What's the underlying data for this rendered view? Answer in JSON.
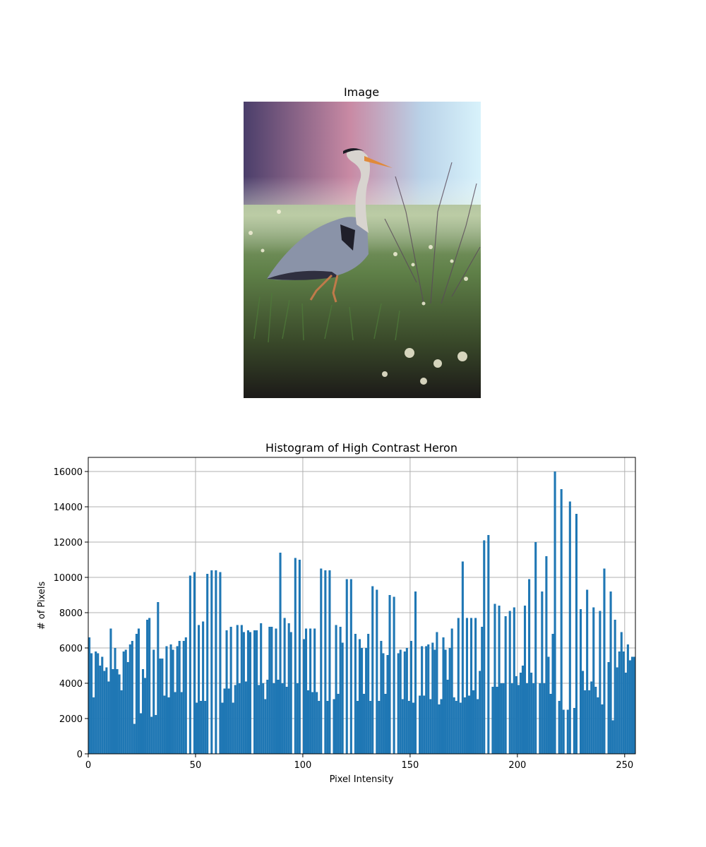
{
  "image_panel": {
    "title": "Image",
    "subject": "great blue heron standing in grass"
  },
  "colors": {
    "bar": "#1f77b4",
    "grid": "#b0b0b0",
    "axis": "#000000"
  },
  "chart_data": {
    "type": "bar",
    "title": "Histogram of High Contrast Heron",
    "xlabel": "Pixel Intensity",
    "ylabel": "# of Pixels",
    "xlim": [
      0,
      255
    ],
    "ylim": [
      0,
      16800
    ],
    "xticks": [
      0,
      50,
      100,
      150,
      200,
      250
    ],
    "yticks": [
      0,
      2000,
      4000,
      6000,
      8000,
      10000,
      12000,
      14000,
      16000
    ],
    "grid": true,
    "bins": 256,
    "values": [
      6600,
      5700,
      3200,
      5800,
      5700,
      5000,
      5500,
      4700,
      4900,
      4100,
      7100,
      4800,
      6000,
      4800,
      4500,
      3600,
      5800,
      5900,
      5200,
      6200,
      6400,
      1700,
      6800,
      7100,
      2300,
      4800,
      4300,
      7600,
      7700,
      2100,
      5900,
      2200,
      8600,
      5400,
      5400,
      3300,
      6100,
      3200,
      6200,
      5900,
      3500,
      6100,
      6400,
      3500,
      6400,
      6600,
      0,
      10100,
      0,
      10300,
      2900,
      7300,
      3000,
      7500,
      3000,
      10200,
      0,
      10400,
      0,
      10400,
      0,
      10300,
      2900,
      3700,
      7000,
      3700,
      7200,
      2900,
      3900,
      7300,
      4000,
      7300,
      6900,
      4100,
      7000,
      6900,
      0,
      7000,
      7000,
      3900,
      7400,
      4000,
      3100,
      4200,
      7200,
      7200,
      4000,
      7100,
      4200,
      11400,
      4000,
      7700,
      3800,
      7400,
      6900,
      0,
      11100,
      4000,
      11000,
      0,
      6500,
      7100,
      3600,
      7100,
      3500,
      7100,
      3500,
      3000,
      10500,
      0,
      10400,
      3000,
      10400,
      0,
      3100,
      7300,
      3400,
      7200,
      6300,
      0,
      9900,
      0,
      9900,
      0,
      6800,
      3000,
      6500,
      6000,
      3400,
      6000,
      6800,
      3000,
      9500,
      0,
      9300,
      3000,
      6400,
      5700,
      3400,
      5600,
      9000,
      0,
      8900,
      0,
      5700,
      5900,
      3100,
      5800,
      6000,
      3000,
      6400,
      2900,
      9200,
      0,
      3300,
      6100,
      3300,
      6100,
      6200,
      3100,
      6300,
      5900,
      6900,
      2800,
      3100,
      6600,
      5900,
      4200,
      6000,
      7100,
      3200,
      3000,
      7700,
      2900,
      10900,
      3200,
      7700,
      3300,
      7700,
      3600,
      7700,
      3100,
      4700,
      7200,
      12100,
      0,
      12400,
      0,
      3800,
      8500,
      3800,
      8400,
      4000,
      4000,
      7800,
      0,
      8100,
      4000,
      8300,
      4400,
      3900,
      4600,
      5000,
      8400,
      4000,
      9900,
      4600,
      4000,
      12000,
      0,
      4000,
      9200,
      4000,
      11200,
      5500,
      3400,
      6800,
      16000,
      0,
      3000,
      15000,
      2500,
      0,
      2500,
      14300,
      0,
      2600,
      13600,
      0,
      8200,
      4700,
      3600,
      9300,
      3600,
      4100,
      8300,
      3800,
      3200,
      8100,
      2800,
      10500,
      0,
      5200,
      9200,
      1900,
      7600,
      4900,
      5800,
      6900,
      5800,
      4600,
      6200,
      5300,
      5500,
      5500
    ]
  }
}
